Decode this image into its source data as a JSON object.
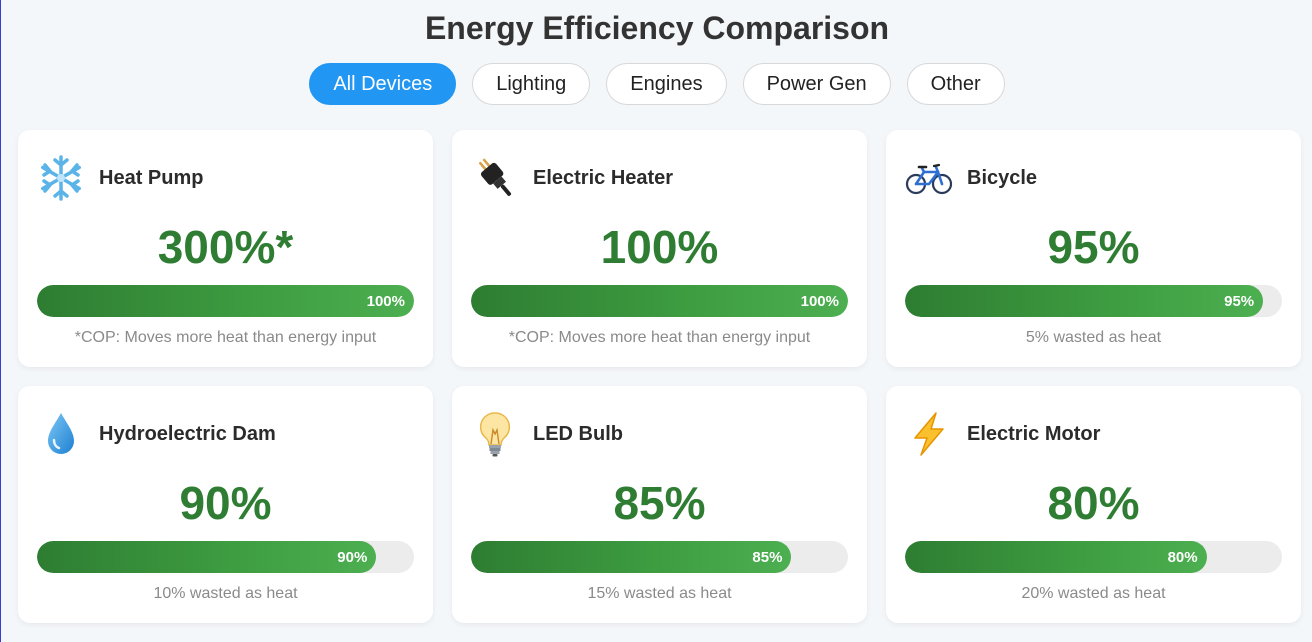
{
  "header": {
    "title": "Energy Efficiency Comparison"
  },
  "filters": [
    {
      "label": "All Devices",
      "active": true
    },
    {
      "label": "Lighting",
      "active": false
    },
    {
      "label": "Engines",
      "active": false
    },
    {
      "label": "Power Gen",
      "active": false
    },
    {
      "label": "Other",
      "active": false
    }
  ],
  "cards": [
    {
      "name": "Heat Pump",
      "icon": "snowflake-icon",
      "percent_text": "300%*",
      "bar_label": "100%",
      "bar_fraction": 1.0,
      "note": "*COP: Moves more heat than energy input"
    },
    {
      "name": "Electric Heater",
      "icon": "plug-icon",
      "percent_text": "100%",
      "bar_label": "100%",
      "bar_fraction": 1.0,
      "note": "*COP: Moves more heat than energy input"
    },
    {
      "name": "Bicycle",
      "icon": "bicycle-icon",
      "percent_text": "95%",
      "bar_label": "95%",
      "bar_fraction": 0.95,
      "note": "5% wasted as heat"
    },
    {
      "name": "Hydroelectric Dam",
      "icon": "water-drop-icon",
      "percent_text": "90%",
      "bar_label": "90%",
      "bar_fraction": 0.9,
      "note": "10% wasted as heat"
    },
    {
      "name": "LED Bulb",
      "icon": "light-bulb-icon",
      "percent_text": "85%",
      "bar_label": "85%",
      "bar_fraction": 0.85,
      "note": "15% wasted as heat"
    },
    {
      "name": "Electric Motor",
      "icon": "lightning-icon",
      "percent_text": "80%",
      "bar_label": "80%",
      "bar_fraction": 0.8,
      "note": "20% wasted as heat"
    }
  ],
  "colors": {
    "accent": "#2196f3",
    "efficiency_green": "#2e7d32",
    "bar_light": "#4caf50"
  }
}
